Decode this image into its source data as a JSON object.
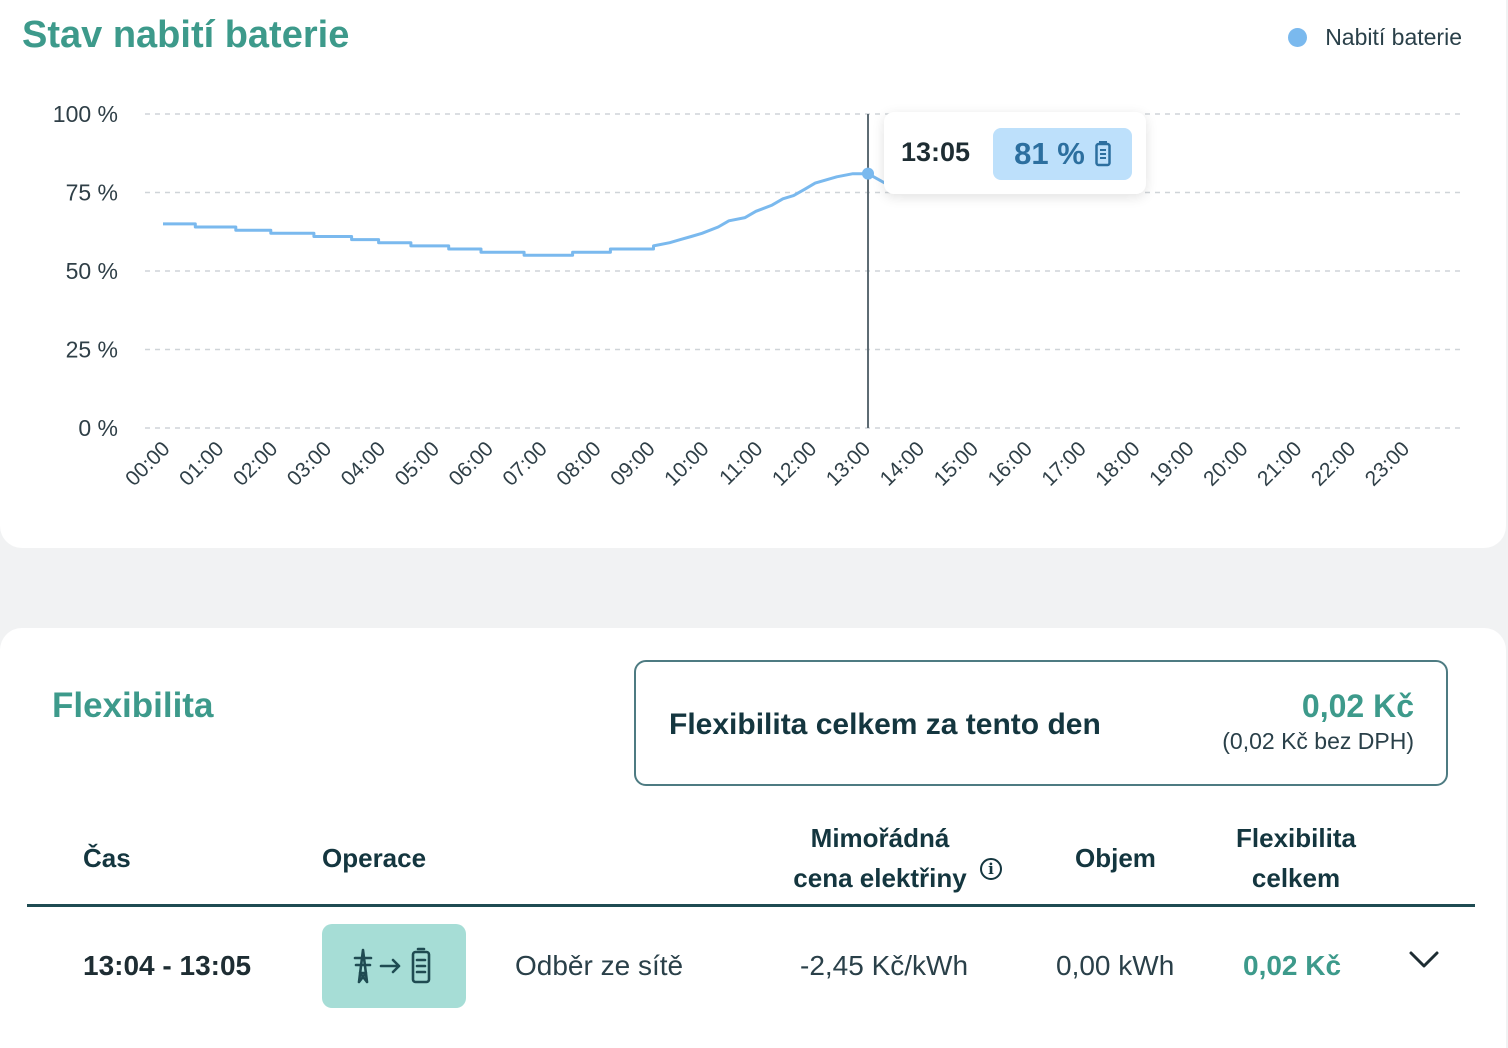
{
  "battery_card": {
    "title": "Stav nabití baterie",
    "legend_label": "Nabití baterie",
    "tooltip": {
      "time": "13:05",
      "value": "81 %"
    }
  },
  "colors": {
    "accent_green": "#3d9a8b",
    "line_blue": "#7ab9ee",
    "dark_teal": "#14363f",
    "chip_bg": "#a6ddd6",
    "tooltip_pill": "#bde0fb"
  },
  "chart_data": {
    "type": "line",
    "title": "Stav nabití baterie",
    "series": [
      {
        "name": "Nabití baterie",
        "x_hours": [
          0,
          0.6,
          0.6,
          1.35,
          1.35,
          2.0,
          2.0,
          2.8,
          2.8,
          3.5,
          3.5,
          4.0,
          4.0,
          4.6,
          4.6,
          5.3,
          5.3,
          5.9,
          5.9,
          6.7,
          6.7,
          7.6,
          7.6,
          8.3,
          8.3,
          9.1,
          9.1,
          9.4,
          9.6,
          9.8,
          10.0,
          10.3,
          10.5,
          10.8,
          11.0,
          11.3,
          11.5,
          11.7,
          11.9,
          12.1,
          12.3,
          12.5,
          12.8,
          13.08
        ],
        "y": [
          65,
          65,
          64,
          64,
          63,
          63,
          62,
          62,
          61,
          61,
          60,
          60,
          59,
          59,
          58,
          58,
          57,
          57,
          56,
          56,
          55,
          55,
          56,
          56,
          57,
          57,
          58,
          59,
          60,
          61,
          62,
          64,
          66,
          67,
          69,
          71,
          73,
          74,
          76,
          78,
          79,
          80,
          81,
          81
        ]
      }
    ],
    "x_ticks": [
      "00:00",
      "01:00",
      "02:00",
      "03:00",
      "04:00",
      "05:00",
      "06:00",
      "07:00",
      "08:00",
      "09:00",
      "10:00",
      "11:00",
      "12:00",
      "13:00",
      "14:00",
      "15:00",
      "16:00",
      "17:00",
      "18:00",
      "19:00",
      "20:00",
      "21:00",
      "22:00",
      "23:00"
    ],
    "y_ticks": [
      "100 %",
      "75 %",
      "50 %",
      "25 %",
      "0 %"
    ],
    "ylim": [
      0,
      100
    ],
    "grid": true,
    "legend": "top-right",
    "cursor_hour": 13.08,
    "cursor_value": 81
  },
  "flex_card": {
    "title": "Flexibilita",
    "summary": {
      "label": "Flexibilita celkem za tento den",
      "value": "0,02 Kč",
      "sub": "(0,02 Kč bez DPH)"
    },
    "columns": {
      "time": "Čas",
      "operation": "Operace",
      "price_line1": "Mimořádná",
      "price_line2": "cena elektřiny",
      "volume": "Objem",
      "flex_line1": "Flexibilita",
      "flex_line2": "celkem"
    },
    "rows": [
      {
        "time": "13:04 - 13:05",
        "operation_icon": "grid-to-battery-icon",
        "operation": "Odběr ze sítě",
        "price": "-2,45 Kč/kWh",
        "volume": "0,00 kWh",
        "flex": "0,02 Kč"
      }
    ]
  }
}
